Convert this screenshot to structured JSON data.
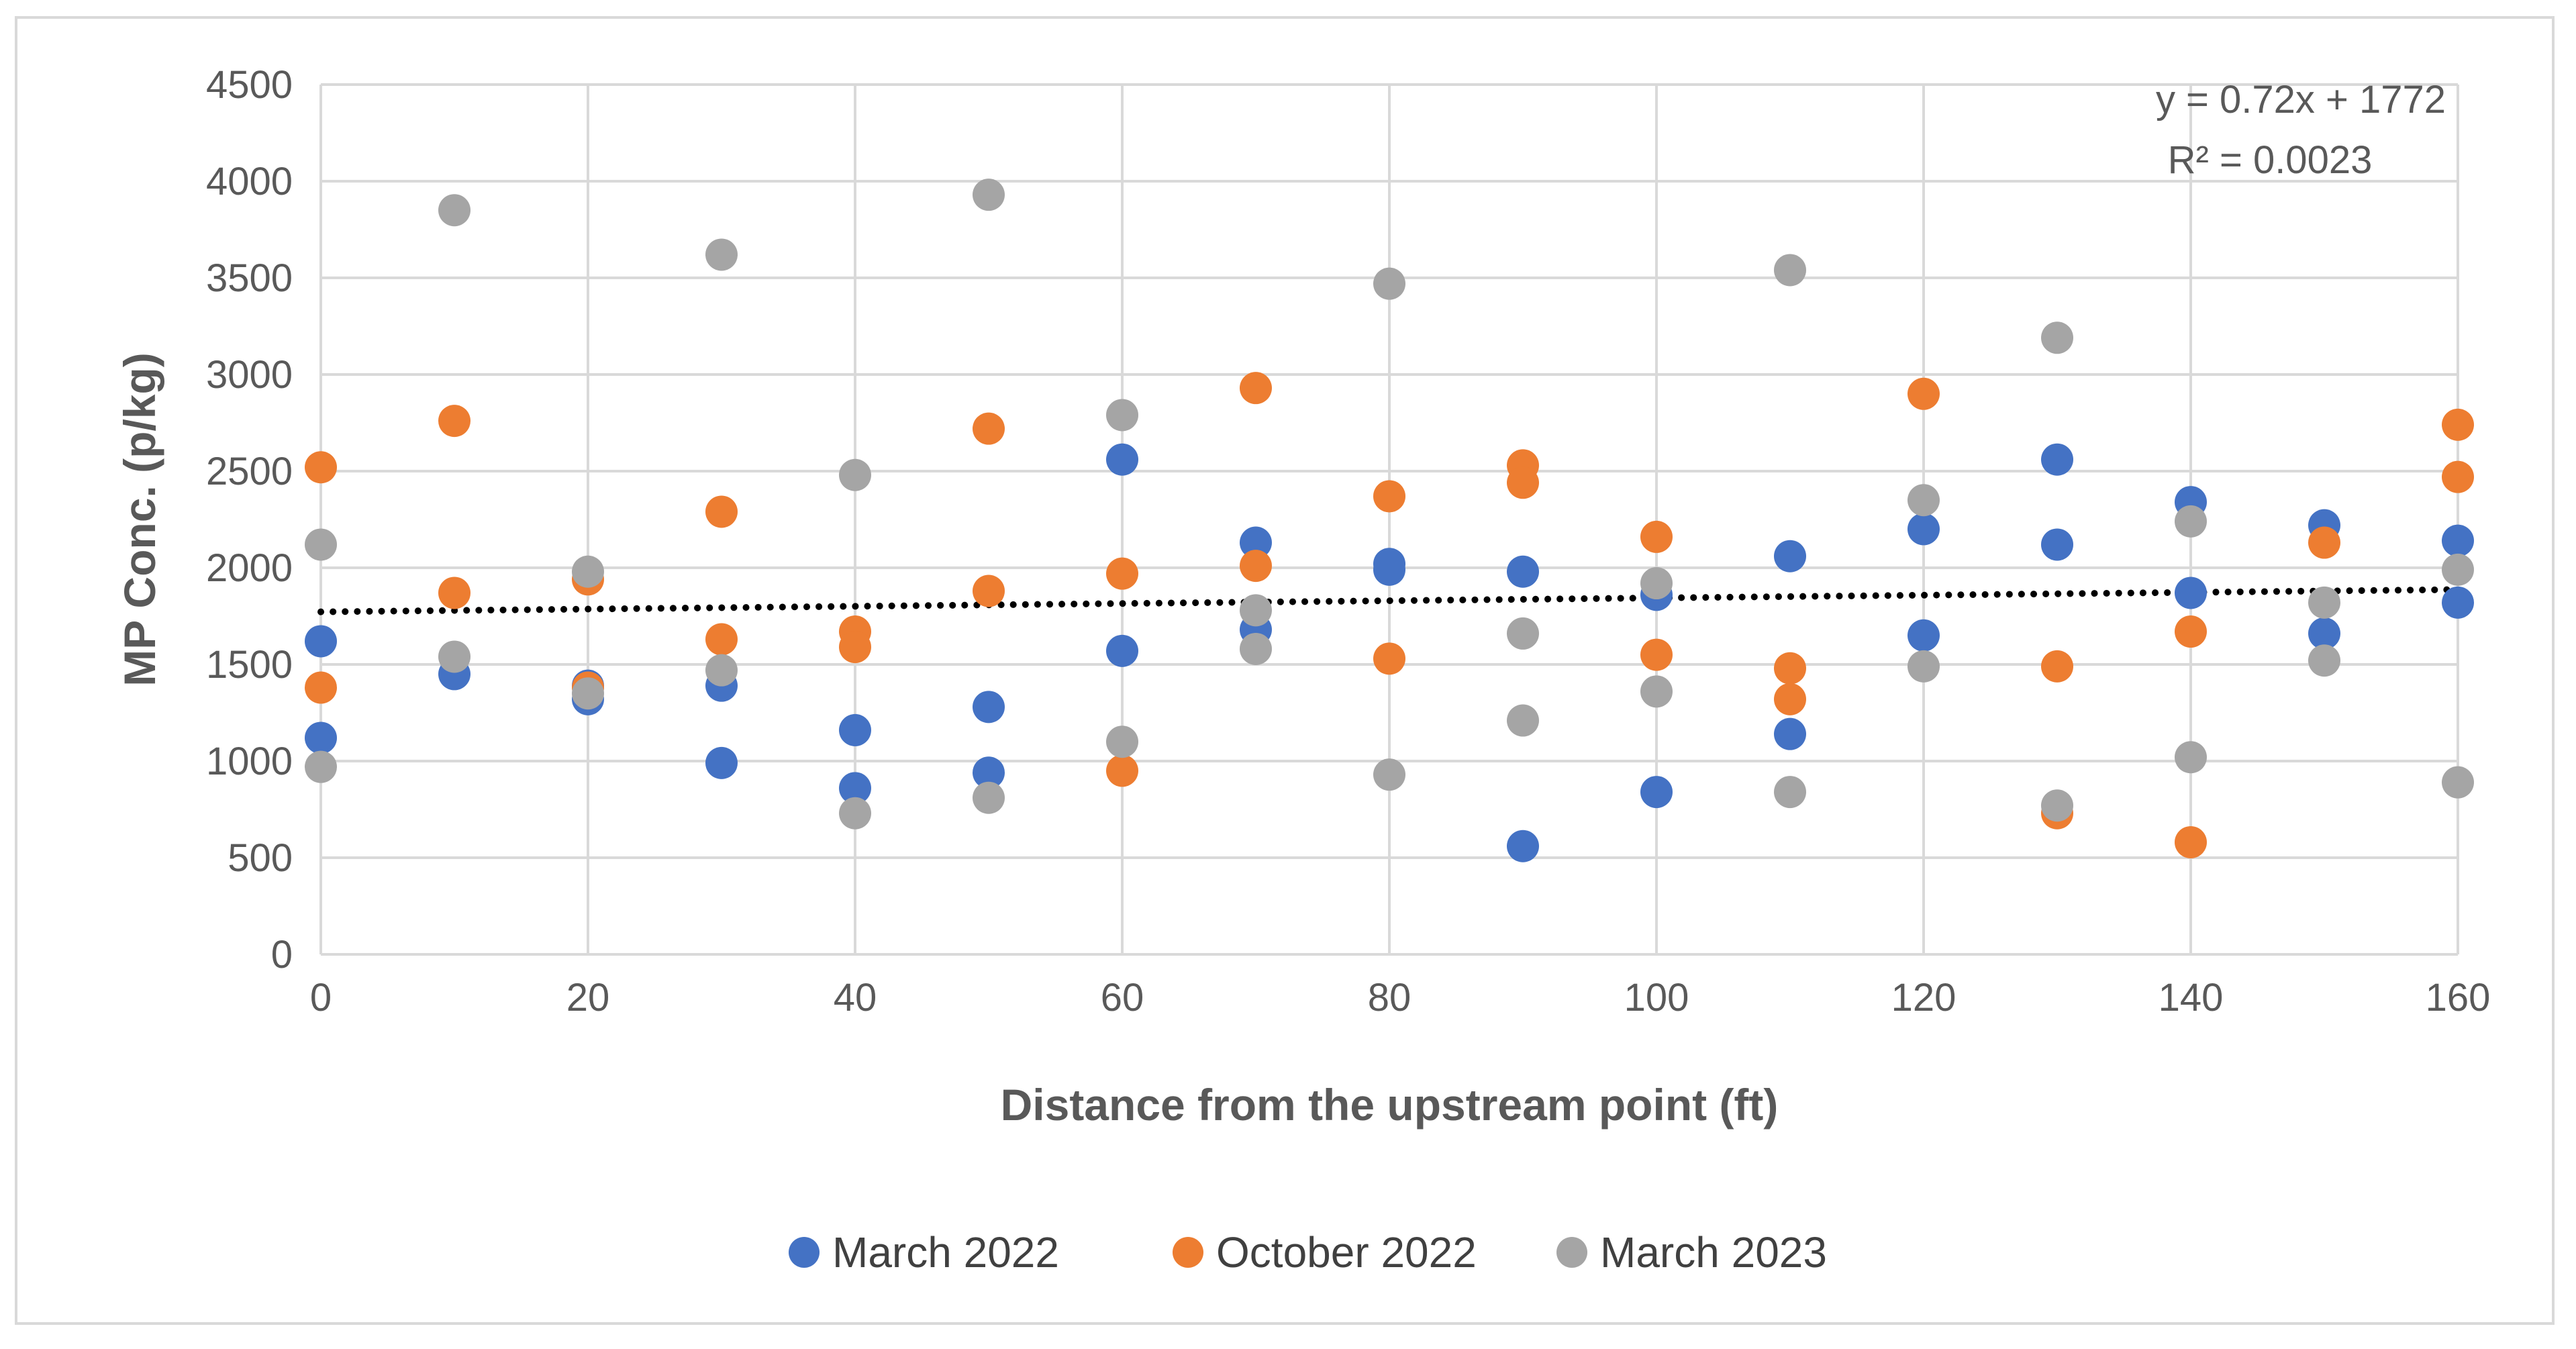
{
  "chart_data": {
    "type": "scatter",
    "xlabel": "Distance from the upstream point (ft)",
    "ylabel": "MP Conc. (p/kg)",
    "xlim": [
      0,
      160
    ],
    "ylim": [
      0,
      4500
    ],
    "xticks": [
      0,
      20,
      40,
      60,
      80,
      100,
      120,
      140,
      160
    ],
    "yticks": [
      0,
      500,
      1000,
      1500,
      2000,
      2500,
      3000,
      3500,
      4000,
      4500
    ],
    "grid": true,
    "legend_position": "bottom",
    "series": [
      {
        "name": "March 2022",
        "color": "#4472c4",
        "points": [
          [
            0,
            1620
          ],
          [
            0,
            1120
          ],
          [
            10,
            1450
          ],
          [
            20,
            1320
          ],
          [
            20,
            1390
          ],
          [
            30,
            1390
          ],
          [
            30,
            990
          ],
          [
            40,
            1160
          ],
          [
            40,
            860
          ],
          [
            50,
            1280
          ],
          [
            50,
            940
          ],
          [
            60,
            2560
          ],
          [
            60,
            1570
          ],
          [
            70,
            2130
          ],
          [
            70,
            1680
          ],
          [
            80,
            2020
          ],
          [
            80,
            1990
          ],
          [
            90,
            1980
          ],
          [
            90,
            560
          ],
          [
            100,
            1860
          ],
          [
            100,
            840
          ],
          [
            110,
            2060
          ],
          [
            110,
            1140
          ],
          [
            120,
            2200
          ],
          [
            120,
            1650
          ],
          [
            130,
            2560
          ],
          [
            130,
            2120
          ],
          [
            140,
            2340
          ],
          [
            140,
            1870
          ],
          [
            150,
            2220
          ],
          [
            150,
            1660
          ],
          [
            160,
            2140
          ],
          [
            160,
            1820
          ]
        ]
      },
      {
        "name": "October 2022",
        "color": "#ed7d31",
        "points": [
          [
            0,
            2520
          ],
          [
            0,
            1380
          ],
          [
            10,
            2760
          ],
          [
            10,
            1870
          ],
          [
            20,
            1940
          ],
          [
            20,
            1380
          ],
          [
            30,
            2290
          ],
          [
            30,
            1630
          ],
          [
            40,
            1670
          ],
          [
            40,
            1590
          ],
          [
            50,
            2720
          ],
          [
            50,
            1880
          ],
          [
            60,
            1970
          ],
          [
            60,
            950
          ],
          [
            70,
            2930
          ],
          [
            70,
            2010
          ],
          [
            80,
            2370
          ],
          [
            80,
            1530
          ],
          [
            90,
            2530
          ],
          [
            90,
            2440
          ],
          [
            100,
            2160
          ],
          [
            100,
            1550
          ],
          [
            110,
            1480
          ],
          [
            110,
            1320
          ],
          [
            120,
            2900
          ],
          [
            130,
            1490
          ],
          [
            130,
            730
          ],
          [
            140,
            1670
          ],
          [
            140,
            580
          ],
          [
            150,
            2130
          ],
          [
            160,
            2740
          ],
          [
            160,
            2470
          ]
        ]
      },
      {
        "name": "March 2023",
        "color": "#a5a5a5",
        "points": [
          [
            0,
            2120
          ],
          [
            0,
            970
          ],
          [
            10,
            3850
          ],
          [
            10,
            1540
          ],
          [
            20,
            1980
          ],
          [
            20,
            1350
          ],
          [
            30,
            3620
          ],
          [
            30,
            1470
          ],
          [
            40,
            2480
          ],
          [
            40,
            730
          ],
          [
            50,
            3930
          ],
          [
            50,
            810
          ],
          [
            60,
            2790
          ],
          [
            60,
            1100
          ],
          [
            70,
            1780
          ],
          [
            70,
            1580
          ],
          [
            80,
            3470
          ],
          [
            80,
            930
          ],
          [
            90,
            1660
          ],
          [
            90,
            1210
          ],
          [
            100,
            1920
          ],
          [
            100,
            1360
          ],
          [
            110,
            3540
          ],
          [
            110,
            840
          ],
          [
            120,
            2350
          ],
          [
            120,
            1490
          ],
          [
            130,
            3190
          ],
          [
            130,
            770
          ],
          [
            140,
            2240
          ],
          [
            140,
            1020
          ],
          [
            150,
            1820
          ],
          [
            150,
            1520
          ],
          [
            160,
            1990
          ],
          [
            160,
            890
          ]
        ]
      }
    ],
    "trendline": {
      "slope": 0.72,
      "intercept": 1772,
      "style": "dotted",
      "color": "#000000",
      "equation": "y = 0.72x + 1772",
      "r_squared": "R² = 0.0023"
    }
  }
}
